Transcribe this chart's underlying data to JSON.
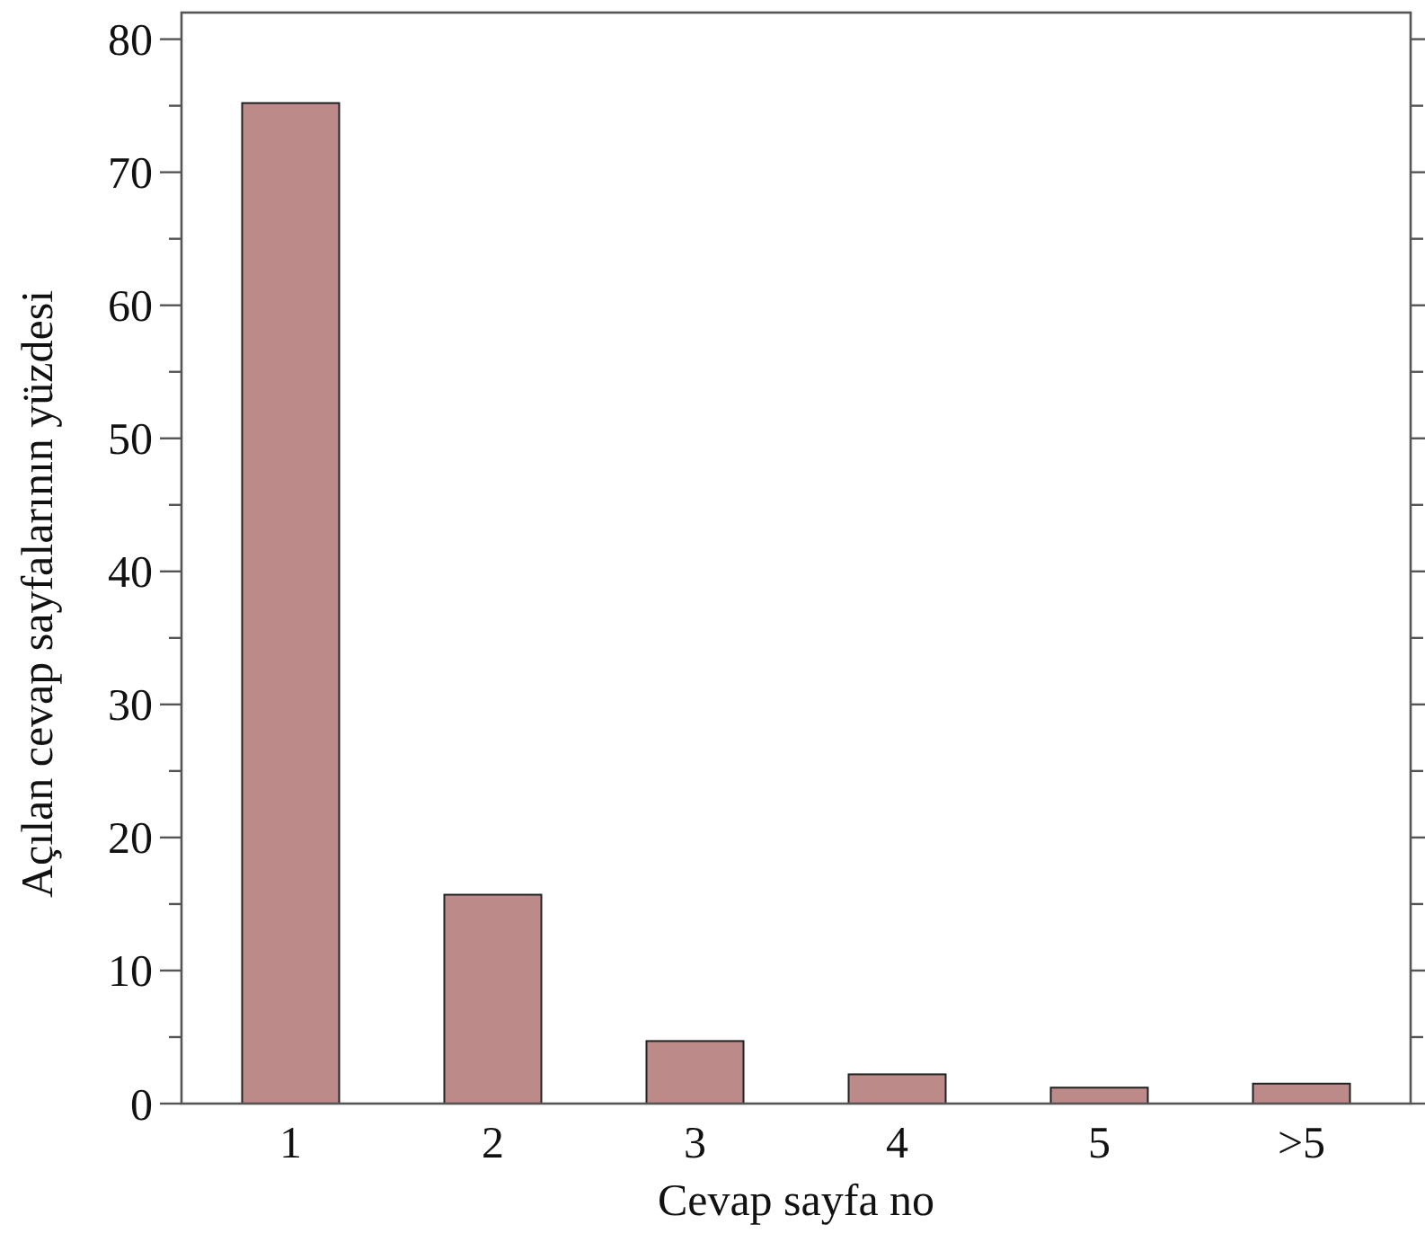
{
  "chart_data": {
    "type": "bar",
    "xlabel": "Cevap sayfa no",
    "ylabel": "Açılan cevap sayfalarının yüzdesi",
    "categories": [
      "1",
      "2",
      "3",
      "4",
      "5",
      ">5"
    ],
    "values": [
      75.2,
      15.7,
      4.7,
      2.2,
      1.2,
      1.5
    ],
    "color": "#bc8a89",
    "ylim": [
      0,
      82
    ],
    "yticks": [
      0,
      {
        "value": 5,
        "label": null
      },
      10,
      {
        "value": 15,
        "label": null
      },
      20,
      {
        "value": 25,
        "label": null
      },
      30,
      {
        "value": 35,
        "label": null
      },
      40,
      {
        "value": 45,
        "label": null
      },
      50,
      {
        "value": 55,
        "label": null
      },
      60,
      {
        "value": 65,
        "label": null
      },
      70,
      {
        "value": 75,
        "label": null
      },
      80
    ],
    "grid": false
  }
}
